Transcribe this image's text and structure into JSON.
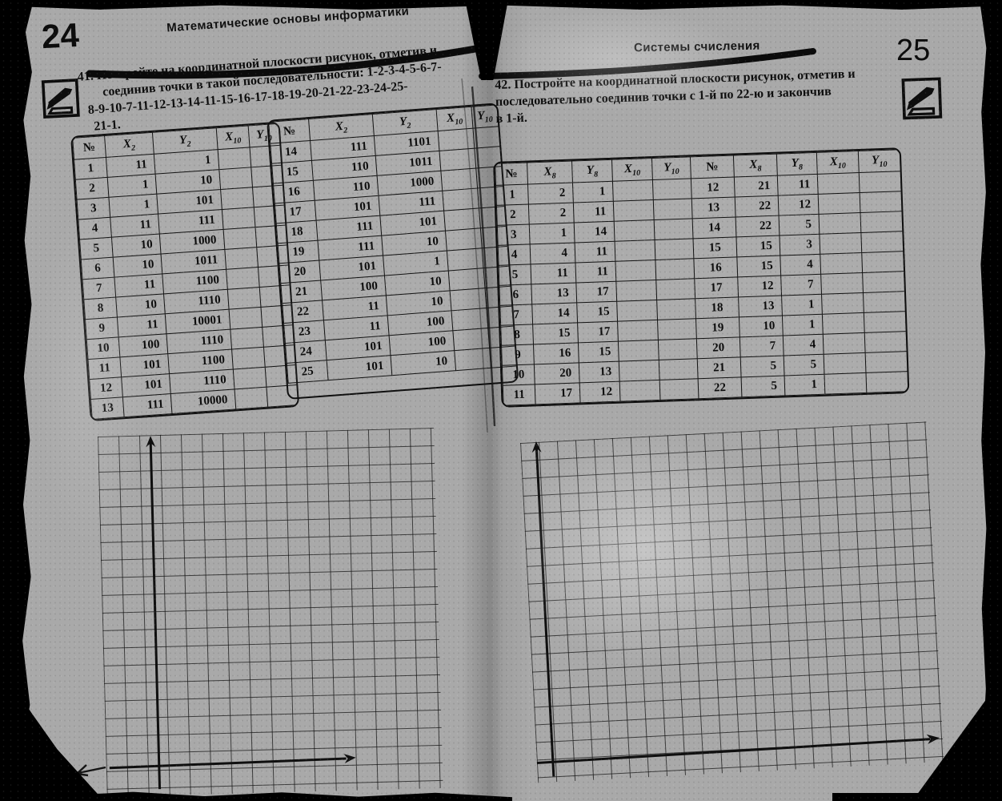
{
  "left_page": {
    "page_number": "24",
    "running_header": "Математические основы информатики",
    "margin_icon": "pencil-icon",
    "task": {
      "lines": [
        "41. Постройте на координатной плоскости рисунок, отметив и",
        "соединив точки в такой последовательности: 1-2-3-4-5-6-7-",
        "8-9-10-7-11-12-13-14-11-15-16-17-18-19-20-21-22-23-24-25-",
        "21-1."
      ]
    },
    "table_part1": {
      "headers": [
        {
          "base": "№",
          "sub": ""
        },
        {
          "base": "X",
          "sub": "2"
        },
        {
          "base": "Y",
          "sub": "2"
        },
        {
          "base": "X",
          "sub": "10"
        },
        {
          "base": "Y",
          "sub": "10"
        }
      ],
      "rows": [
        [
          "1",
          "11",
          "1",
          "",
          ""
        ],
        [
          "2",
          "1",
          "10",
          "",
          ""
        ],
        [
          "3",
          "1",
          "101",
          "",
          ""
        ],
        [
          "4",
          "11",
          "111",
          "",
          ""
        ],
        [
          "5",
          "10",
          "1000",
          "",
          ""
        ],
        [
          "6",
          "10",
          "1011",
          "",
          ""
        ],
        [
          "7",
          "11",
          "1100",
          "",
          ""
        ],
        [
          "8",
          "10",
          "1110",
          "",
          ""
        ],
        [
          "9",
          "11",
          "10001",
          "",
          ""
        ],
        [
          "10",
          "100",
          "1110",
          "",
          ""
        ],
        [
          "11",
          "101",
          "1100",
          "",
          ""
        ],
        [
          "12",
          "101",
          "1110",
          "",
          ""
        ],
        [
          "13",
          "111",
          "10000",
          "",
          ""
        ]
      ]
    },
    "table_part2": {
      "headers": [
        {
          "base": "№",
          "sub": ""
        },
        {
          "base": "X",
          "sub": "2"
        },
        {
          "base": "Y",
          "sub": "2"
        },
        {
          "base": "X",
          "sub": "10"
        },
        {
          "base": "Y",
          "sub": "10"
        }
      ],
      "rows": [
        [
          "14",
          "111",
          "1101",
          "",
          ""
        ],
        [
          "15",
          "110",
          "1011",
          "",
          ""
        ],
        [
          "16",
          "110",
          "1000",
          "",
          ""
        ],
        [
          "17",
          "101",
          "111",
          "",
          ""
        ],
        [
          "18",
          "111",
          "101",
          "",
          ""
        ],
        [
          "19",
          "111",
          "10",
          "",
          ""
        ],
        [
          "20",
          "101",
          "1",
          "",
          ""
        ],
        [
          "21",
          "100",
          "10",
          "",
          ""
        ],
        [
          "22",
          "11",
          "10",
          "",
          ""
        ],
        [
          "23",
          "11",
          "100",
          "",
          ""
        ],
        [
          "24",
          "101",
          "100",
          "",
          ""
        ],
        [
          "25",
          "101",
          "10",
          "",
          ""
        ]
      ]
    }
  },
  "right_page": {
    "page_number": "25",
    "running_header": "Системы счисления",
    "margin_icon": "pencil-icon",
    "task": {
      "lines": [
        "42. Постройте на координатной плоскости рисунок, отметив и",
        "последовательно соединив точки с 1-й по 22-ю и закончив",
        "в 1-й."
      ]
    },
    "table": {
      "headers": [
        {
          "base": "№",
          "sub": ""
        },
        {
          "base": "X",
          "sub": "8"
        },
        {
          "base": "Y",
          "sub": "8"
        },
        {
          "base": "X",
          "sub": "10"
        },
        {
          "base": "Y",
          "sub": "10"
        },
        {
          "base": "№",
          "sub": ""
        },
        {
          "base": "X",
          "sub": "8"
        },
        {
          "base": "Y",
          "sub": "8"
        },
        {
          "base": "X",
          "sub": "10"
        },
        {
          "base": "Y",
          "sub": "10"
        }
      ],
      "rows": [
        [
          "1",
          "2",
          "1",
          "",
          "",
          "12",
          "21",
          "11",
          "",
          ""
        ],
        [
          "2",
          "2",
          "11",
          "",
          "",
          "13",
          "22",
          "12",
          "",
          ""
        ],
        [
          "3",
          "1",
          "14",
          "",
          "",
          "14",
          "22",
          "5",
          "",
          ""
        ],
        [
          "4",
          "4",
          "11",
          "",
          "",
          "15",
          "15",
          "3",
          "",
          ""
        ],
        [
          "5",
          "11",
          "11",
          "",
          "",
          "16",
          "15",
          "4",
          "",
          ""
        ],
        [
          "6",
          "13",
          "17",
          "",
          "",
          "17",
          "12",
          "7",
          "",
          ""
        ],
        [
          "7",
          "14",
          "15",
          "",
          "",
          "18",
          "13",
          "1",
          "",
          ""
        ],
        [
          "8",
          "15",
          "17",
          "",
          "",
          "19",
          "10",
          "1",
          "",
          ""
        ],
        [
          "9",
          "16",
          "15",
          "",
          "",
          "20",
          "7",
          "4",
          "",
          ""
        ],
        [
          "10",
          "20",
          "13",
          "",
          "",
          "21",
          "5",
          "5",
          "",
          ""
        ],
        [
          "11",
          "17",
          "12",
          "",
          "",
          "22",
          "5",
          "1",
          "",
          ""
        ]
      ]
    }
  }
}
